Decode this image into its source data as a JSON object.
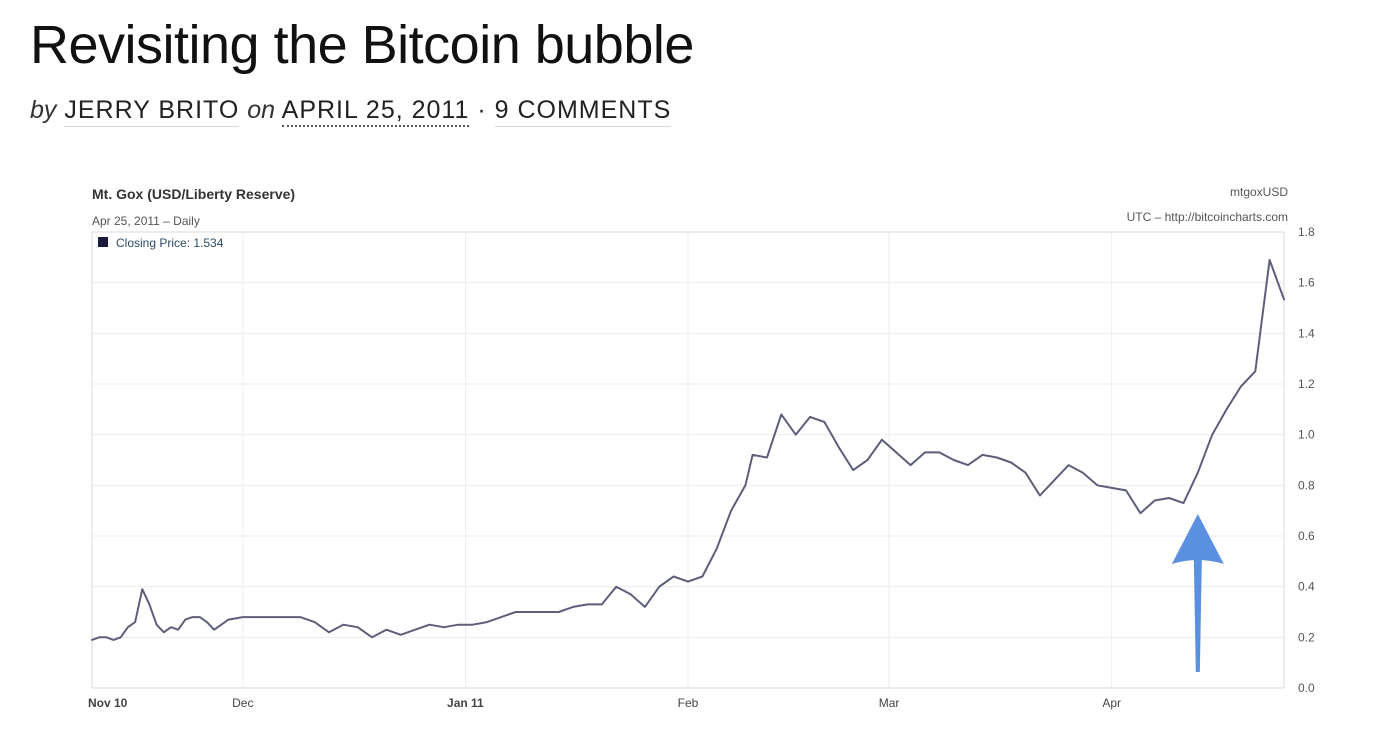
{
  "post": {
    "title": "Revisiting the Bitcoin bubble",
    "by_word": "by",
    "author": "JERRY BRITO",
    "on_word": "on",
    "date": "APRIL 25, 2011",
    "separator": "·",
    "comments": "9 COMMENTS"
  },
  "chart_meta": {
    "title": "Mt. Gox (USD/Liberty Reserve)",
    "subtitle": "Apr 25, 2011 – Daily",
    "legend_label": "Closing Price: 1.534",
    "symbol": "mtgoxUSD",
    "source": "UTC – http://bitcoincharts.com",
    "arrow_color": "#5b8fe0",
    "line_color": "#5d5f7a",
    "grid_color": "#ececec",
    "legend_swatch_color": "#1a1a3a"
  },
  "chart_data": {
    "type": "line",
    "title": "Mt. Gox (USD/Liberty Reserve)",
    "subtitle": "Apr 25, 2011 – Daily",
    "x_tick_labels": [
      "Nov 10",
      "Dec",
      "Jan 11",
      "Feb",
      "Mar",
      "Apr"
    ],
    "y_tick_labels": [
      "0.0",
      "0.2",
      "0.4",
      "0.6",
      "0.8",
      "1.0",
      "1.2",
      "1.4",
      "1.6",
      "1.8"
    ],
    "ylim": [
      0,
      1.8
    ],
    "xlim": [
      "2010-11-10",
      "2011-04-25"
    ],
    "y_axis_position": "right",
    "grid": true,
    "legend": "top-left",
    "series": [
      {
        "name": "Closing Price",
        "x": [
          "2010-11-10",
          "2010-11-11",
          "2010-11-12",
          "2010-11-13",
          "2010-11-14",
          "2010-11-15",
          "2010-11-16",
          "2010-11-17",
          "2010-11-18",
          "2010-11-19",
          "2010-11-20",
          "2010-11-21",
          "2010-11-22",
          "2010-11-23",
          "2010-11-24",
          "2010-11-25",
          "2010-11-26",
          "2010-11-27",
          "2010-11-28",
          "2010-11-29",
          "2010-12-01",
          "2010-12-03",
          "2010-12-05",
          "2010-12-07",
          "2010-12-09",
          "2010-12-11",
          "2010-12-13",
          "2010-12-15",
          "2010-12-17",
          "2010-12-19",
          "2010-12-21",
          "2010-12-23",
          "2010-12-25",
          "2010-12-27",
          "2010-12-29",
          "2010-12-31",
          "2011-01-02",
          "2011-01-04",
          "2011-01-06",
          "2011-01-08",
          "2011-01-10",
          "2011-01-12",
          "2011-01-14",
          "2011-01-16",
          "2011-01-18",
          "2011-01-20",
          "2011-01-22",
          "2011-01-24",
          "2011-01-26",
          "2011-01-28",
          "2011-01-30",
          "2011-02-01",
          "2011-02-03",
          "2011-02-05",
          "2011-02-07",
          "2011-02-09",
          "2011-02-10",
          "2011-02-12",
          "2011-02-14",
          "2011-02-16",
          "2011-02-18",
          "2011-02-20",
          "2011-02-22",
          "2011-02-24",
          "2011-02-26",
          "2011-02-28",
          "2011-03-02",
          "2011-03-04",
          "2011-03-06",
          "2011-03-08",
          "2011-03-10",
          "2011-03-12",
          "2011-03-14",
          "2011-03-16",
          "2011-03-18",
          "2011-03-20",
          "2011-03-22",
          "2011-03-24",
          "2011-03-26",
          "2011-03-28",
          "2011-03-30",
          "2011-04-01",
          "2011-04-03",
          "2011-04-05",
          "2011-04-07",
          "2011-04-09",
          "2011-04-11",
          "2011-04-13",
          "2011-04-15",
          "2011-04-17",
          "2011-04-19",
          "2011-04-21",
          "2011-04-23",
          "2011-04-25"
        ],
        "y": [
          0.19,
          0.2,
          0.2,
          0.19,
          0.2,
          0.24,
          0.26,
          0.39,
          0.33,
          0.25,
          0.22,
          0.24,
          0.23,
          0.27,
          0.28,
          0.28,
          0.26,
          0.23,
          0.25,
          0.27,
          0.28,
          0.28,
          0.28,
          0.28,
          0.28,
          0.26,
          0.22,
          0.25,
          0.24,
          0.2,
          0.23,
          0.21,
          0.23,
          0.25,
          0.24,
          0.25,
          0.25,
          0.26,
          0.28,
          0.3,
          0.3,
          0.3,
          0.3,
          0.32,
          0.33,
          0.33,
          0.4,
          0.37,
          0.32,
          0.4,
          0.44,
          0.42,
          0.44,
          0.55,
          0.7,
          0.8,
          0.92,
          0.91,
          1.08,
          1.0,
          1.07,
          1.05,
          0.95,
          0.86,
          0.9,
          0.98,
          0.93,
          0.88,
          0.93,
          0.93,
          0.9,
          0.88,
          0.92,
          0.91,
          0.89,
          0.85,
          0.76,
          0.82,
          0.88,
          0.85,
          0.8,
          0.79,
          0.78,
          0.69,
          0.74,
          0.75,
          0.73,
          0.85,
          1.0,
          1.1,
          1.19,
          1.25,
          1.69,
          1.534
        ]
      }
    ],
    "annotations": [
      {
        "type": "arrow",
        "points_to": "2011-04-13",
        "direction": "up"
      }
    ]
  }
}
